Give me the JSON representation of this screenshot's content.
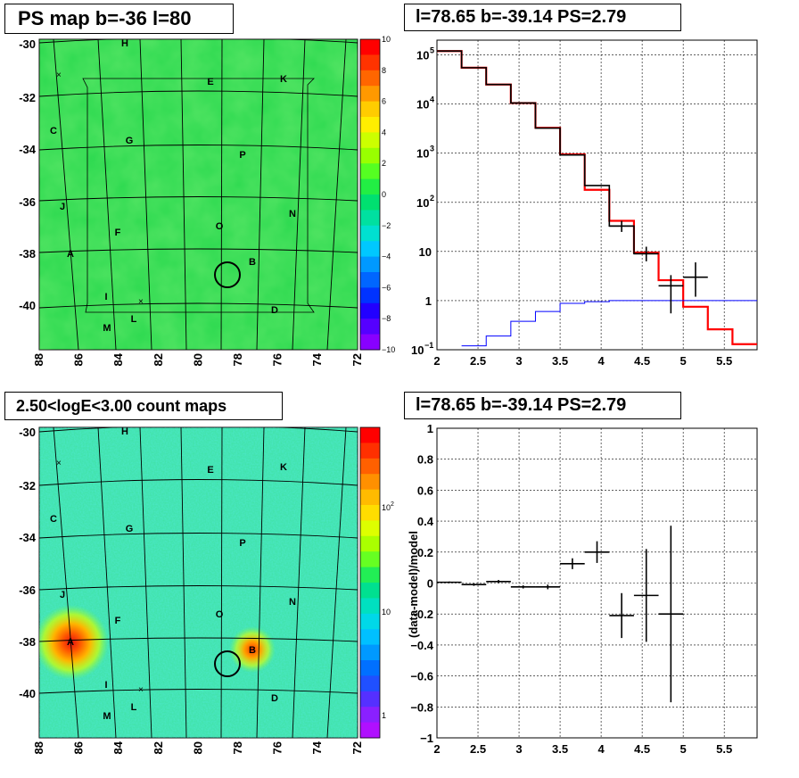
{
  "panels": {
    "ps_map": {
      "title": "PS map b=-36 l=80",
      "y_ticks": [
        "-30",
        "-32",
        "-34",
        "-36",
        "-38",
        "-40"
      ],
      "x_ticks": [
        "88",
        "86",
        "84",
        "82",
        "80",
        "78",
        "76",
        "74",
        "72"
      ],
      "colorbar_ticks": [
        "10",
        "8",
        "6",
        "4",
        "2",
        "0",
        "−2",
        "−4",
        "−6",
        "−8",
        "−10"
      ],
      "labels": [
        "H",
        "E",
        "K",
        "C",
        "G",
        "P",
        "J",
        "N",
        "F",
        "O",
        "A",
        "B",
        "I",
        "D",
        "M",
        "L"
      ]
    },
    "spectrum": {
      "title": "l=78.65 b=-39.14 PS=2.79",
      "x_ticks": [
        "2",
        "2.5",
        "3",
        "3.5",
        "4",
        "4.5",
        "5",
        "5.5"
      ],
      "y_tick_base": "10",
      "y_tick_exps": [
        "5",
        "4",
        "3",
        "2"
      ],
      "y_tick_plain": [
        "10",
        "1"
      ],
      "y_tick_low_base": "10",
      "y_tick_low_exp": "−1"
    },
    "count_map": {
      "title": "2.50<logE<3.00 count maps",
      "y_ticks": [
        "-30",
        "-32",
        "-34",
        "-36",
        "-38",
        "-40"
      ],
      "x_ticks": [
        "88",
        "86",
        "84",
        "82",
        "80",
        "78",
        "76",
        "74",
        "72"
      ],
      "colorbar_base": "10",
      "colorbar_exp": "2",
      "colorbar_ticks_plain": [
        "10",
        "1"
      ],
      "labels": [
        "H",
        "E",
        "K",
        "C",
        "G",
        "P",
        "J",
        "N",
        "F",
        "O",
        "A",
        "B",
        "I",
        "D",
        "M",
        "L"
      ]
    },
    "residual": {
      "title": "l=78.65 b=-39.14 PS=2.79",
      "ylabel": "(data-model)/model",
      "x_ticks": [
        "2",
        "2.5",
        "3",
        "3.5",
        "4",
        "4.5",
        "5",
        "5.5"
      ],
      "y_ticks": [
        "1",
        "0.8",
        "0.6",
        "0.4",
        "0.2",
        "0",
        "−0.2",
        "−0.4",
        "−0.6",
        "−0.8",
        "−1"
      ]
    }
  },
  "colors": {
    "map_green": "#22d44a",
    "model_red": "#ff0000",
    "bg_blue": "#0000ff",
    "data_black": "#000000"
  },
  "chart_data": [
    {
      "type": "heatmap",
      "title": "PS map b=-36 l=80",
      "xlabel": "",
      "ylabel": "",
      "xlim": [
        88,
        72
      ],
      "ylim": [
        -41.5,
        -29.7
      ],
      "zlim": [
        -10,
        10
      ],
      "source_marker": {
        "l": 78.65,
        "b": -39.14
      }
    },
    {
      "type": "line",
      "title": "l=78.65 b=-39.14 PS=2.79",
      "xlabel": "",
      "ylabel": "",
      "xlim": [
        2,
        5.9
      ],
      "ylim": [
        0.1,
        200000
      ],
      "yscale": "log",
      "grid": true,
      "series": [
        {
          "name": "",
          "color": "#ff0000",
          "step": true,
          "edges": [
            2.0,
            2.3,
            2.6,
            2.9,
            3.2,
            3.5,
            3.8,
            4.1,
            4.4,
            4.7,
            5.0,
            5.3,
            5.6,
            5.9
          ],
          "values": [
            120000,
            55000,
            25000,
            10500,
            3300,
            950,
            180,
            42,
            9.5,
            2.6,
            0.75,
            0.26,
            0.13
          ]
        },
        {
          "name": "",
          "color": "#000000",
          "step": true,
          "edges": [
            2.0,
            2.3,
            2.6,
            2.9,
            3.2,
            3.5,
            3.8,
            4.1,
            4.4,
            4.7
          ],
          "values": [
            120000,
            55000,
            25000,
            10500,
            3250,
            920,
            220,
            33,
            9.0
          ]
        },
        {
          "name": "",
          "color": "#0000ff",
          "step": true,
          "edges": [
            2.3,
            2.6,
            2.9,
            3.2,
            3.5,
            3.8,
            4.1,
            4.4,
            4.7,
            5.0,
            5.3,
            5.6,
            5.9
          ],
          "values": [
            0.12,
            0.19,
            0.38,
            0.6,
            0.88,
            0.95,
            1.0,
            1.0,
            1.0,
            1.0,
            1.0,
            1.0
          ]
        }
      ],
      "points": [
        {
          "x": 4.25,
          "xerr": 0.15,
          "y": 33,
          "ylo": 25,
          "yhi": 42
        },
        {
          "x": 4.55,
          "xerr": 0.15,
          "y": 9.0,
          "ylo": 6.3,
          "yhi": 12.5
        },
        {
          "x": 4.85,
          "xerr": 0.15,
          "y": 2.0,
          "ylo": 0.55,
          "yhi": 3.3
        },
        {
          "x": 5.15,
          "xerr": 0.15,
          "y": 3.0,
          "ylo": 1.2,
          "yhi": 6.0
        }
      ]
    },
    {
      "type": "heatmap",
      "title": "2.50<logE<3.00 count maps",
      "xlabel": "",
      "ylabel": "",
      "xlim": [
        88,
        72
      ],
      "ylim": [
        -41.5,
        -29.7
      ],
      "zscale": "log",
      "zlim": [
        0.5,
        400
      ],
      "hotspots": [
        {
          "label": "A",
          "l": 86.5,
          "b": -38.2
        },
        {
          "label": "B",
          "l": 77.4,
          "b": -38.4
        }
      ],
      "source_marker": {
        "l": 78.65,
        "b": -39.14
      }
    },
    {
      "type": "scatter",
      "title": "l=78.65 b=-39.14 PS=2.79",
      "xlabel": "",
      "ylabel": "(data-model)/model",
      "xlim": [
        2,
        5.9
      ],
      "ylim": [
        -1,
        1
      ],
      "grid": true,
      "points": [
        {
          "x": 2.15,
          "xerr": 0.15,
          "y": 0.005,
          "yerr": 0.005
        },
        {
          "x": 2.45,
          "xerr": 0.15,
          "y": -0.01,
          "yerr": 0.008
        },
        {
          "x": 2.75,
          "xerr": 0.15,
          "y": 0.01,
          "yerr": 0.01
        },
        {
          "x": 3.05,
          "xerr": 0.15,
          "y": -0.025,
          "yerr": 0.01
        },
        {
          "x": 3.35,
          "xerr": 0.15,
          "y": -0.025,
          "yerr": 0.015
        },
        {
          "x": 3.65,
          "xerr": 0.15,
          "y": 0.125,
          "yerr": 0.035
        },
        {
          "x": 3.95,
          "xerr": 0.15,
          "y": 0.2,
          "yerr": 0.07
        },
        {
          "x": 4.25,
          "xerr": 0.15,
          "y": -0.21,
          "yerr": 0.145
        },
        {
          "x": 4.55,
          "xerr": 0.15,
          "y": -0.08,
          "yerr": 0.3
        },
        {
          "x": 4.85,
          "xerr": 0.15,
          "y": -0.2,
          "yerr": 0.57
        }
      ]
    }
  ]
}
